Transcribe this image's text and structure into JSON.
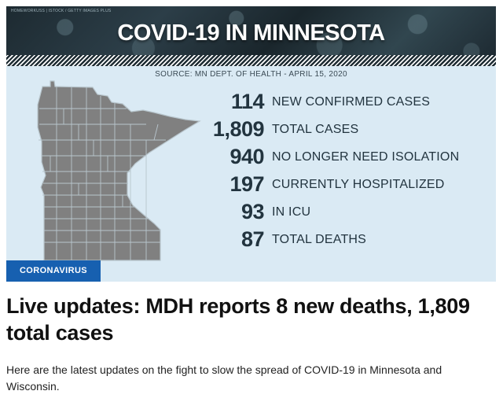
{
  "graphic": {
    "credit": "HOMEWORKUSS | ISTOCK / GETTY IMAGES PLUS",
    "title": "COVID-19 IN MINNESOTA",
    "source": "SOURCE: MN DEPT. OF HEALTH - APRIL 15, 2020",
    "stats": [
      {
        "value": "114",
        "label": "NEW CONFIRMED CASES"
      },
      {
        "value": "1,809",
        "label": "TOTAL CASES"
      },
      {
        "value": "940",
        "label": "NO LONGER NEED ISOLATION"
      },
      {
        "value": "197",
        "label": "CURRENTLY HOSPITALIZED"
      },
      {
        "value": "93",
        "label": "IN ICU"
      },
      {
        "value": "87",
        "label": "TOTAL DEATHS"
      }
    ],
    "badge": "CORONAVIRUS",
    "colors": {
      "banner": "#22343f",
      "background": "#daeaf4",
      "map": "#808080",
      "badge": "#1760b0"
    }
  },
  "article": {
    "headline": "Live updates: MDH reports 8 new deaths, 1,809 total cases",
    "summary": "Here are the latest updates on the fight to slow the spread of COVID-19 in Minnesota and Wisconsin."
  }
}
